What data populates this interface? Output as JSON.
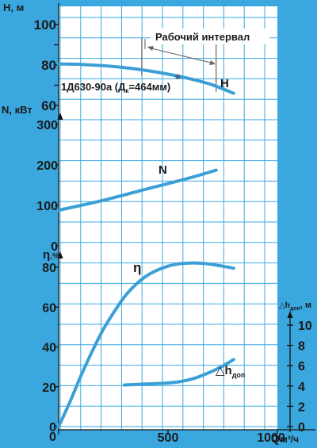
{
  "chart_data": {
    "type": "line",
    "x_axis": {
      "label": "Q",
      "unit": "м³/ч",
      "range": [
        0,
        1000
      ],
      "ticks": [
        500,
        1000
      ],
      "tick_labels": [
        "500",
        "1000"
      ],
      "origin_label": "0"
    },
    "grid": true,
    "colors": {
      "background": "#3aa8df",
      "plot_area": "#ffffff",
      "grid": "#3aa8df",
      "curve": "#3b9fd6",
      "text": "#1a1a1a",
      "annotation_line": "#666666"
    },
    "panels": [
      {
        "id": "head",
        "axis_label": "H, м",
        "range": [
          60,
          100
        ],
        "ticks": [
          60,
          80,
          100
        ],
        "tick_labels": [
          "60",
          "80",
          "100"
        ],
        "minor_ticks": [
          70,
          90
        ],
        "curve": {
          "name": "H",
          "points": [
            [
              0,
              80.5
            ],
            [
              100,
              80.3
            ],
            [
              200,
              79.7
            ],
            [
              300,
              78.7
            ],
            [
              400,
              77.3
            ],
            [
              500,
              75.5
            ],
            [
              600,
              73.2
            ],
            [
              700,
              70.3
            ],
            [
              800,
              66.0
            ]
          ]
        },
        "model_label": "1Д630-90а (Д",
        "model_label_sub": "к",
        "model_label_end": "=464мм)",
        "operating_point": {
          "x": 545,
          "y": 74.2
        },
        "working_range": {
          "label": "Рабочий интервал",
          "x_start": 380,
          "x_end": 720
        }
      },
      {
        "id": "power",
        "axis_label": "N, кВт",
        "range": [
          0,
          300
        ],
        "ticks": [
          0,
          100,
          200,
          300
        ],
        "tick_labels": [
          "0",
          "100",
          "200",
          "300"
        ],
        "curve": {
          "name": "N",
          "points": [
            [
              0,
              88
            ],
            [
              200,
              112
            ],
            [
              400,
              140
            ],
            [
              600,
              168
            ],
            [
              720,
              187
            ]
          ]
        }
      },
      {
        "id": "efficiency",
        "axis_label": "η",
        "axis_label_suffix": ",%",
        "range": [
          0,
          80
        ],
        "ticks": [
          0,
          20,
          40,
          60,
          80
        ],
        "tick_labels": [
          "0",
          "20",
          "40",
          "60",
          "80"
        ],
        "curve": {
          "name": "η",
          "points": [
            [
              0,
              0
            ],
            [
              50,
              12
            ],
            [
              100,
              25
            ],
            [
              150,
              37
            ],
            [
              200,
              48
            ],
            [
              250,
              57
            ],
            [
              300,
              65
            ],
            [
              350,
              71
            ],
            [
              400,
              75.5
            ],
            [
              450,
              78.5
            ],
            [
              500,
              80.5
            ],
            [
              550,
              81.7
            ],
            [
              600,
              82.1
            ],
            [
              650,
              82
            ],
            [
              700,
              81.4
            ],
            [
              750,
              80.5
            ],
            [
              800,
              79.5
            ]
          ]
        }
      },
      {
        "id": "npsh",
        "axis_label": "△h",
        "axis_label_sub": "доп",
        "axis_label_suffix": ", м",
        "range": [
          0,
          10
        ],
        "ticks": [
          0,
          2,
          4,
          6,
          8,
          10
        ],
        "tick_labels": [
          "0",
          "2",
          "4",
          "6",
          "8",
          "10"
        ],
        "curve": {
          "name": "△h",
          "name_sub": "доп",
          "points": [
            [
              300,
              4.1
            ],
            [
              400,
              4.2
            ],
            [
              500,
              4.3
            ],
            [
              560,
              4.45
            ],
            [
              620,
              4.75
            ],
            [
              680,
              5.25
            ],
            [
              740,
              5.85
            ],
            [
              800,
              6.6
            ]
          ]
        }
      }
    ]
  }
}
